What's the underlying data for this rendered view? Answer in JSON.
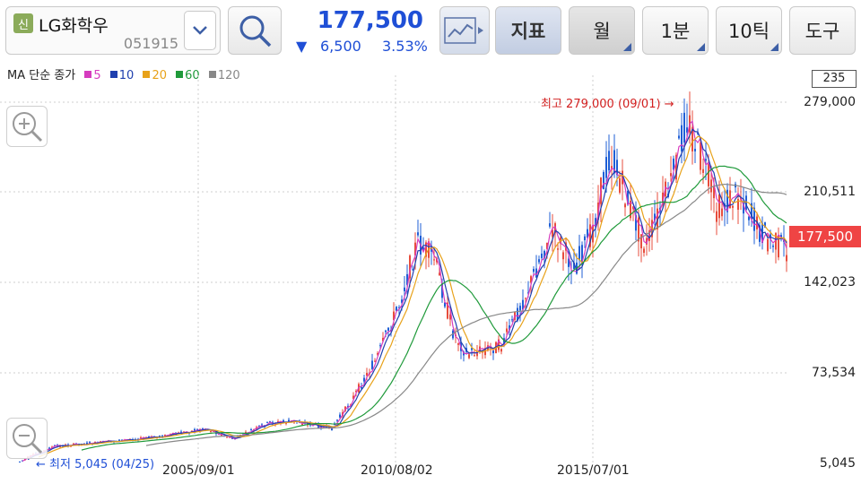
{
  "stock": {
    "badge": "신",
    "name": "LG화학우",
    "code": "051915"
  },
  "quote": {
    "price": "177,500",
    "change_arrow": "▼",
    "change": "6,500",
    "change_pct": "3.53%"
  },
  "toolbar": {
    "indicator_label": "지표",
    "period_label": "월",
    "interval_label": "1분",
    "tick_label": "10틱",
    "tools_label": "도구"
  },
  "ma_legend": {
    "prefix": "MA 단순 종가",
    "items": [
      {
        "label": "5",
        "color": "#d63cbf"
      },
      {
        "label": "10",
        "color": "#1f3fae"
      },
      {
        "label": "20",
        "color": "#e8a21a"
      },
      {
        "label": "60",
        "color": "#1f9a3a"
      },
      {
        "label": "120",
        "color": "#888888"
      }
    ]
  },
  "axis": {
    "top_box": "235",
    "y_labels": [
      "279,000",
      "210,511",
      "142,023",
      "73,534",
      "5,045"
    ],
    "current_price": "177,500",
    "x_labels": [
      "2005/09/01",
      "2010/08/02",
      "2015/07/01"
    ]
  },
  "annotations": {
    "high": "최고 279,000 (09/01) →",
    "low": "← 최저 5,045 (04/25)"
  },
  "colors": {
    "up": "#e74c3c",
    "down": "#1f5fd6",
    "accent": "#1f4fd6"
  }
}
